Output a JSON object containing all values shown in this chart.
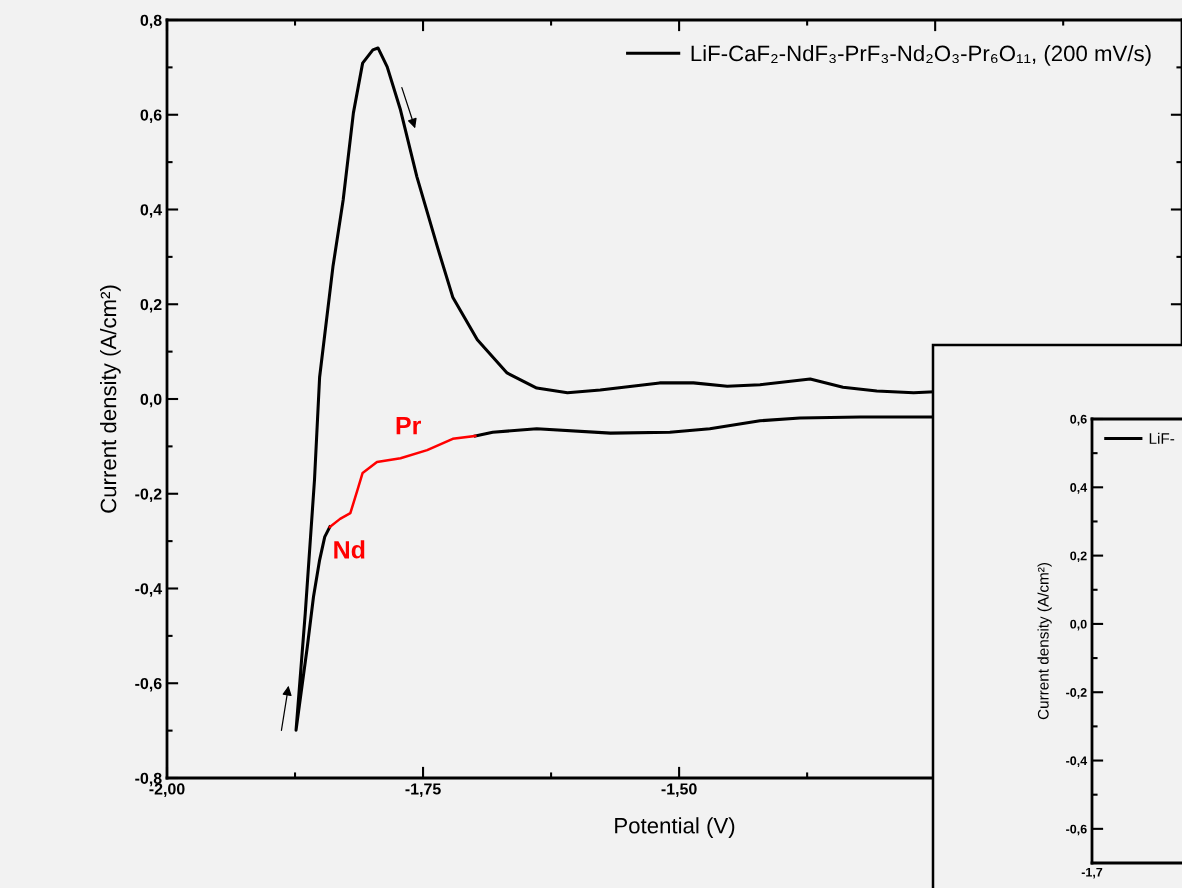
{
  "chart_data": [
    {
      "type": "line",
      "xlabel": "Potential (V)",
      "ylabel": "Current density (A/cm²)",
      "xlim": [
        -2.0,
        -1.009
      ],
      "ylim": [
        -0.8,
        0.8
      ],
      "xticks": [
        {
          "value": -2.0,
          "label": "-2,00"
        },
        {
          "value": -1.75,
          "label": "-1,75"
        },
        {
          "value": -1.5,
          "label": "-1,50"
        },
        {
          "value": -1.25,
          "label": null
        }
      ],
      "yticks": [
        {
          "value": -0.8,
          "label": "-0,8"
        },
        {
          "value": -0.6,
          "label": "-0,6"
        },
        {
          "value": -0.4,
          "label": "-0,4"
        },
        {
          "value": -0.2,
          "label": "-0,2"
        },
        {
          "value": 0.0,
          "label": "0,0"
        },
        {
          "value": 0.2,
          "label": "0,2"
        },
        {
          "value": 0.4,
          "label": "0,4"
        },
        {
          "value": 0.6,
          "label": "0,6"
        },
        {
          "value": 0.8,
          "label": "0,8"
        }
      ],
      "legend": "top right",
      "grid": false,
      "marker": "none",
      "line_style": "solid",
      "series": [
        {
          "name": "LiF-CaF₂-NdF₃-PrF₃-Nd₂O₃-Pr₆O₁₁, (200 mV/s)",
          "color": "#000000",
          "x": [
            -1.252,
            -1.323,
            -1.382,
            -1.421,
            -1.47,
            -1.509,
            -1.567,
            -1.639,
            -1.682,
            -1.699,
            -1.77,
            -1.841,
            -1.846,
            -1.851,
            -1.857,
            -1.863,
            -1.874,
            -1.865,
            -1.856,
            -1.851,
            -1.838,
            -1.828,
            -1.818,
            -1.809,
            -1.799,
            -1.794,
            -1.785,
            -1.772,
            -1.756,
            -1.736,
            -1.721,
            -1.697,
            -1.668,
            -1.639,
            -1.609,
            -1.577,
            -1.519,
            -1.486,
            -1.453,
            -1.421,
            -1.372,
            -1.34,
            -1.307,
            -1.271,
            -1.252
          ],
          "values": [
            -0.038,
            -0.038,
            -0.04,
            -0.046,
            -0.063,
            -0.07,
            -0.072,
            -0.063,
            -0.07,
            -0.078,
            null,
            -0.27,
            -0.291,
            -0.34,
            -0.418,
            -0.523,
            -0.699,
            -0.452,
            -0.171,
            0.046,
            0.279,
            0.42,
            0.604,
            0.709,
            0.737,
            0.741,
            0.701,
            0.61,
            0.469,
            0.321,
            0.215,
            0.125,
            0.055,
            0.023,
            0.013,
            0.019,
            0.034,
            0.034,
            0.027,
            0.03,
            0.042,
            0.025,
            0.017,
            0.013,
            0.015
          ]
        },
        {
          "color": "#ff0000",
          "x": [
            -1.699,
            -1.721,
            -1.746,
            -1.772,
            -1.795,
            -1.809,
            -1.814,
            -1.821,
            -1.831,
            -1.841
          ],
          "values": [
            -0.078,
            -0.084,
            -0.108,
            -0.125,
            -0.133,
            -0.156,
            -0.192,
            -0.241,
            -0.253,
            -0.27
          ]
        }
      ],
      "annotations": [
        "Pr",
        "Nd"
      ]
    },
    {
      "type": "line",
      "ylabel": "Current density (A/cm²)",
      "ylim": [
        -0.7,
        0.6
      ],
      "annotations": [
        "-1,7"
      ],
      "yticks": [
        {
          "value": -0.6,
          "label": "-0,6"
        },
        {
          "value": -0.4,
          "label": "-0,4"
        },
        {
          "value": -0.2,
          "label": "-0,2"
        },
        {
          "value": 0.0,
          "label": "0,0"
        },
        {
          "value": 0.2,
          "label": "0,2"
        },
        {
          "value": 0.4,
          "label": "0,4"
        },
        {
          "value": 0.6,
          "label": "0,6"
        }
      ],
      "legend": "top left",
      "grid": false,
      "marker": "none",
      "line_style": "solid",
      "series": [
        {
          "name": "LiF-",
          "color": "#000000"
        }
      ]
    }
  ]
}
